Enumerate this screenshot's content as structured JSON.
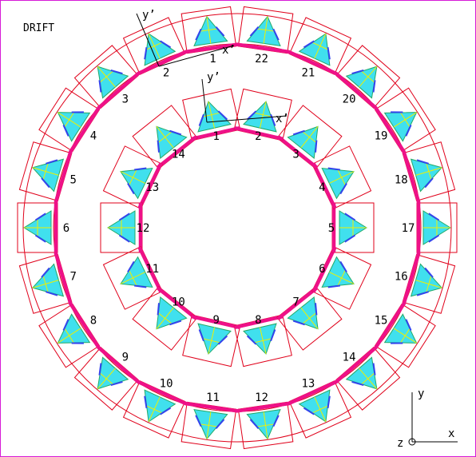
{
  "title": "DRIFT",
  "colors": {
    "outline": "#e0001a",
    "plank": "#ee1188",
    "tri_fill": "#40e0ee",
    "tri_edge": "#22aa66",
    "wire": "#f0f000",
    "arrow": "#3344ee",
    "border": "#d61ad6"
  },
  "outer_ring": {
    "labels": [
      "1",
      "2",
      "3",
      "4",
      "5",
      "6",
      "7",
      "8",
      "9",
      "10",
      "11",
      "12",
      "13",
      "14",
      "15",
      "16",
      "17",
      "18",
      "19",
      "20",
      "21",
      "22"
    ]
  },
  "inner_ring": {
    "labels": [
      "1",
      "14",
      "13",
      "12",
      "11",
      "10",
      "9",
      "8",
      "7",
      "6",
      "5",
      "4",
      "3",
      "2"
    ]
  },
  "local_axes": {
    "outer": {
      "y_label": "y’",
      "x_label": "x’"
    },
    "inner": {
      "y_label": "y’",
      "x_label": "x’"
    }
  },
  "axes_legend": {
    "y": "y",
    "x": "x",
    "z": "z"
  }
}
